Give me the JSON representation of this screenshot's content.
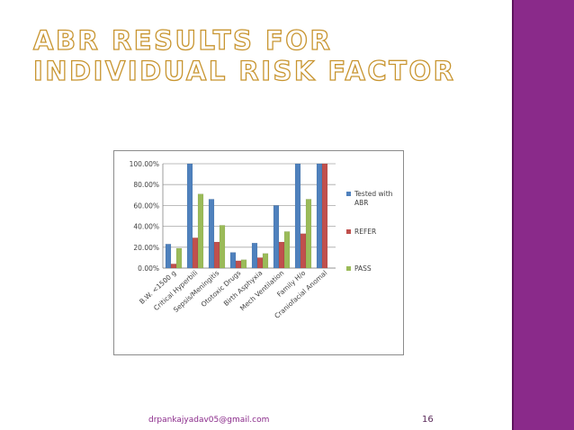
{
  "slide": {
    "title": "ABR Results for individual risk factor",
    "footer_email": "drpankajyadav05@gmail.com",
    "page_number": "16"
  },
  "colors": {
    "accent_band": "#8a2a8a",
    "title_outline": "#c89530"
  },
  "chart_data": {
    "type": "bar",
    "categories": [
      "B.W. <1500 g",
      "Critical Hyperbili",
      "Sepsis/Meningitis",
      "Ototoxic Drugs",
      "Birth Asphyxia",
      "Mech Ventilation",
      "Family H/o",
      "Craniofacial Anomal"
    ],
    "series": [
      {
        "name": "Tested with ABR",
        "color": "#4f81bd",
        "values": [
          23,
          100,
          66,
          15,
          24,
          60,
          100,
          100
        ]
      },
      {
        "name": "REFER",
        "color": "#c0504d",
        "values": [
          4,
          29,
          25,
          7,
          10,
          25,
          33,
          100
        ]
      },
      {
        "name": "PASS",
        "color": "#9bbb59",
        "values": [
          19,
          71,
          41,
          8,
          14,
          35,
          66,
          0
        ]
      }
    ],
    "y_tick_labels": [
      "0.00%",
      "20.00%",
      "40.00%",
      "60.00%",
      "80.00%",
      "100.00%"
    ],
    "ylim": [
      0,
      100
    ],
    "grid": true,
    "legend_position": "right"
  }
}
